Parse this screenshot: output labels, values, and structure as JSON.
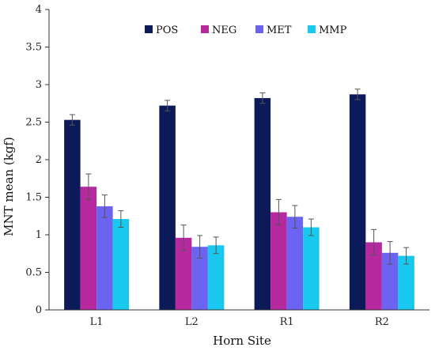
{
  "chart_data": {
    "type": "bar",
    "xlabel": "Horn Site",
    "ylabel": "MNT mean (kgf)",
    "categories": [
      "L1",
      "L2",
      "R1",
      "R2"
    ],
    "ylim": [
      0,
      4
    ],
    "yticks": [
      "0",
      "0.5",
      "1",
      "1.5",
      "2",
      "2.5",
      "3",
      "3.5",
      "4"
    ],
    "grid": false,
    "legend_position": "top-center",
    "series": [
      {
        "name": "POS",
        "color": "#0d1a5a",
        "values": [
          2.53,
          2.72,
          2.82,
          2.87
        ],
        "errors": [
          0.07,
          0.07,
          0.07,
          0.07
        ]
      },
      {
        "name": "NEG",
        "color": "#b5289e",
        "values": [
          1.64,
          0.96,
          1.3,
          0.9
        ],
        "errors": [
          0.17,
          0.17,
          0.17,
          0.17
        ]
      },
      {
        "name": "MET",
        "color": "#6c63f0",
        "values": [
          1.38,
          0.84,
          1.24,
          0.76
        ],
        "errors": [
          0.15,
          0.15,
          0.15,
          0.15
        ]
      },
      {
        "name": "MMP",
        "color": "#19c8ef",
        "values": [
          1.21,
          0.86,
          1.1,
          0.72
        ],
        "errors": [
          0.11,
          0.11,
          0.11,
          0.11
        ]
      }
    ]
  }
}
